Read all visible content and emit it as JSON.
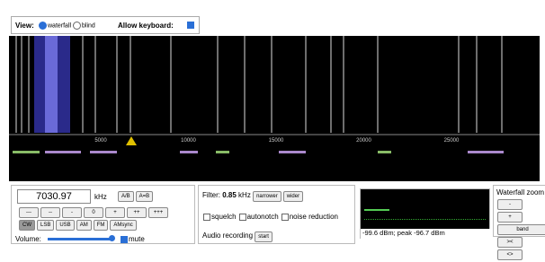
{
  "header": {
    "view_label": "View:",
    "view_options": [
      "waterfall",
      "blind"
    ],
    "keyboard_label": "Allow keyboard:"
  },
  "frequency_scale": [
    "5000",
    "10000",
    "15000",
    "20000",
    "25000"
  ],
  "tuning": {
    "frequency": "7030.97",
    "unit": "kHz",
    "buttons": [
      "A/B",
      "A=B"
    ],
    "steps": [
      "---",
      "--",
      "-",
      "0",
      "+",
      "++",
      "+++"
    ],
    "modes": [
      "CW",
      "LSB",
      "USB",
      "AM",
      "FM",
      "AMsync"
    ],
    "volume_label": "Volume:",
    "mute_label": "mute"
  },
  "filter": {
    "label": "Filter:",
    "value": "0.85",
    "unit": "kHz",
    "buttons": [
      "narrower",
      "wider"
    ],
    "options": [
      "squelch",
      "autonotch",
      "noise reduction"
    ],
    "recording_label": "Audio recording",
    "recording_button": "start"
  },
  "meter": {
    "text": "-99.6 dBm; peak -96.7 dBm"
  },
  "zoom": {
    "title": "Waterfall zoom",
    "buttons": [
      "-",
      "+",
      "band",
      "><",
      "<>"
    ]
  }
}
